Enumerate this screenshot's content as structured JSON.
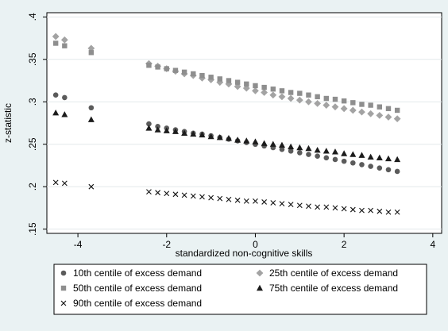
{
  "chart_data": {
    "type": "scatter",
    "xlabel": "standardized non-cognitive skills",
    "ylabel": "z-statistic",
    "xlim": [
      -4.7,
      4.2
    ],
    "ylim": [
      0.145,
      0.405
    ],
    "xticks": [
      -4,
      -2,
      0,
      2,
      4
    ],
    "xtick_labels": [
      "-4",
      "-2",
      "0",
      "2",
      "4"
    ],
    "yticks": [
      0.15,
      0.2,
      0.25,
      0.3,
      0.35,
      0.4
    ],
    "ytick_labels": [
      ".15",
      ".2",
      ".25",
      ".3",
      ".35",
      ".4"
    ],
    "grid": "horizontal",
    "legend_position": "bottom",
    "x": [
      -4.5,
      -4.3,
      -3.7,
      -2.4,
      -2.2,
      -2.0,
      -1.8,
      -1.6,
      -1.4,
      -1.2,
      -1.0,
      -0.8,
      -0.6,
      -0.4,
      -0.2,
      0.0,
      0.2,
      0.4,
      0.6,
      0.8,
      1.0,
      1.2,
      1.4,
      1.6,
      1.8,
      2.0,
      2.2,
      2.4,
      2.6,
      2.8,
      3.0,
      3.2
    ],
    "series": [
      {
        "name": "10th centile of excess demand",
        "marker": "circle",
        "color": "#5b5b5b",
        "values": [
          0.308,
          0.305,
          0.293,
          0.274,
          0.271,
          0.269,
          0.267,
          0.265,
          0.263,
          0.262,
          0.26,
          0.258,
          0.256,
          0.254,
          0.252,
          0.25,
          0.248,
          0.246,
          0.244,
          0.242,
          0.24,
          0.238,
          0.236,
          0.234,
          0.232,
          0.23,
          0.228,
          0.226,
          0.224,
          0.222,
          0.22,
          0.218
        ]
      },
      {
        "name": "25th centile of excess demand",
        "marker": "diamond",
        "color": "#a3a3a3",
        "values": [
          0.377,
          0.373,
          0.363,
          0.345,
          0.342,
          0.339,
          0.336,
          0.333,
          0.331,
          0.328,
          0.326,
          0.323,
          0.321,
          0.318,
          0.316,
          0.313,
          0.311,
          0.308,
          0.306,
          0.304,
          0.302,
          0.3,
          0.298,
          0.296,
          0.294,
          0.292,
          0.29,
          0.288,
          0.286,
          0.284,
          0.282,
          0.28
        ]
      },
      {
        "name": "50th centile of excess demand",
        "marker": "square",
        "color": "#8e8e8e",
        "values": [
          0.369,
          0.366,
          0.358,
          0.343,
          0.341,
          0.339,
          0.337,
          0.335,
          0.333,
          0.331,
          0.329,
          0.327,
          0.325,
          0.323,
          0.321,
          0.319,
          0.317,
          0.315,
          0.313,
          0.311,
          0.31,
          0.308,
          0.306,
          0.304,
          0.303,
          0.301,
          0.299,
          0.297,
          0.296,
          0.294,
          0.292,
          0.29
        ]
      },
      {
        "name": "75th centile of excess demand",
        "marker": "triangle",
        "color": "#1c1c1c",
        "values": [
          0.287,
          0.285,
          0.279,
          0.269,
          0.267,
          0.266,
          0.265,
          0.263,
          0.262,
          0.261,
          0.259,
          0.258,
          0.257,
          0.255,
          0.254,
          0.253,
          0.251,
          0.25,
          0.249,
          0.247,
          0.246,
          0.245,
          0.243,
          0.242,
          0.241,
          0.239,
          0.238,
          0.237,
          0.235,
          0.234,
          0.233,
          0.232
        ]
      },
      {
        "name": "90th centile of excess demand",
        "marker": "x",
        "color": "#111111",
        "values": [
          0.205,
          0.204,
          0.2,
          0.194,
          0.193,
          0.192,
          0.191,
          0.19,
          0.189,
          0.188,
          0.187,
          0.186,
          0.185,
          0.184,
          0.183,
          0.183,
          0.182,
          0.181,
          0.18,
          0.179,
          0.178,
          0.177,
          0.176,
          0.176,
          0.175,
          0.174,
          0.173,
          0.172,
          0.172,
          0.171,
          0.17,
          0.17
        ]
      }
    ]
  }
}
